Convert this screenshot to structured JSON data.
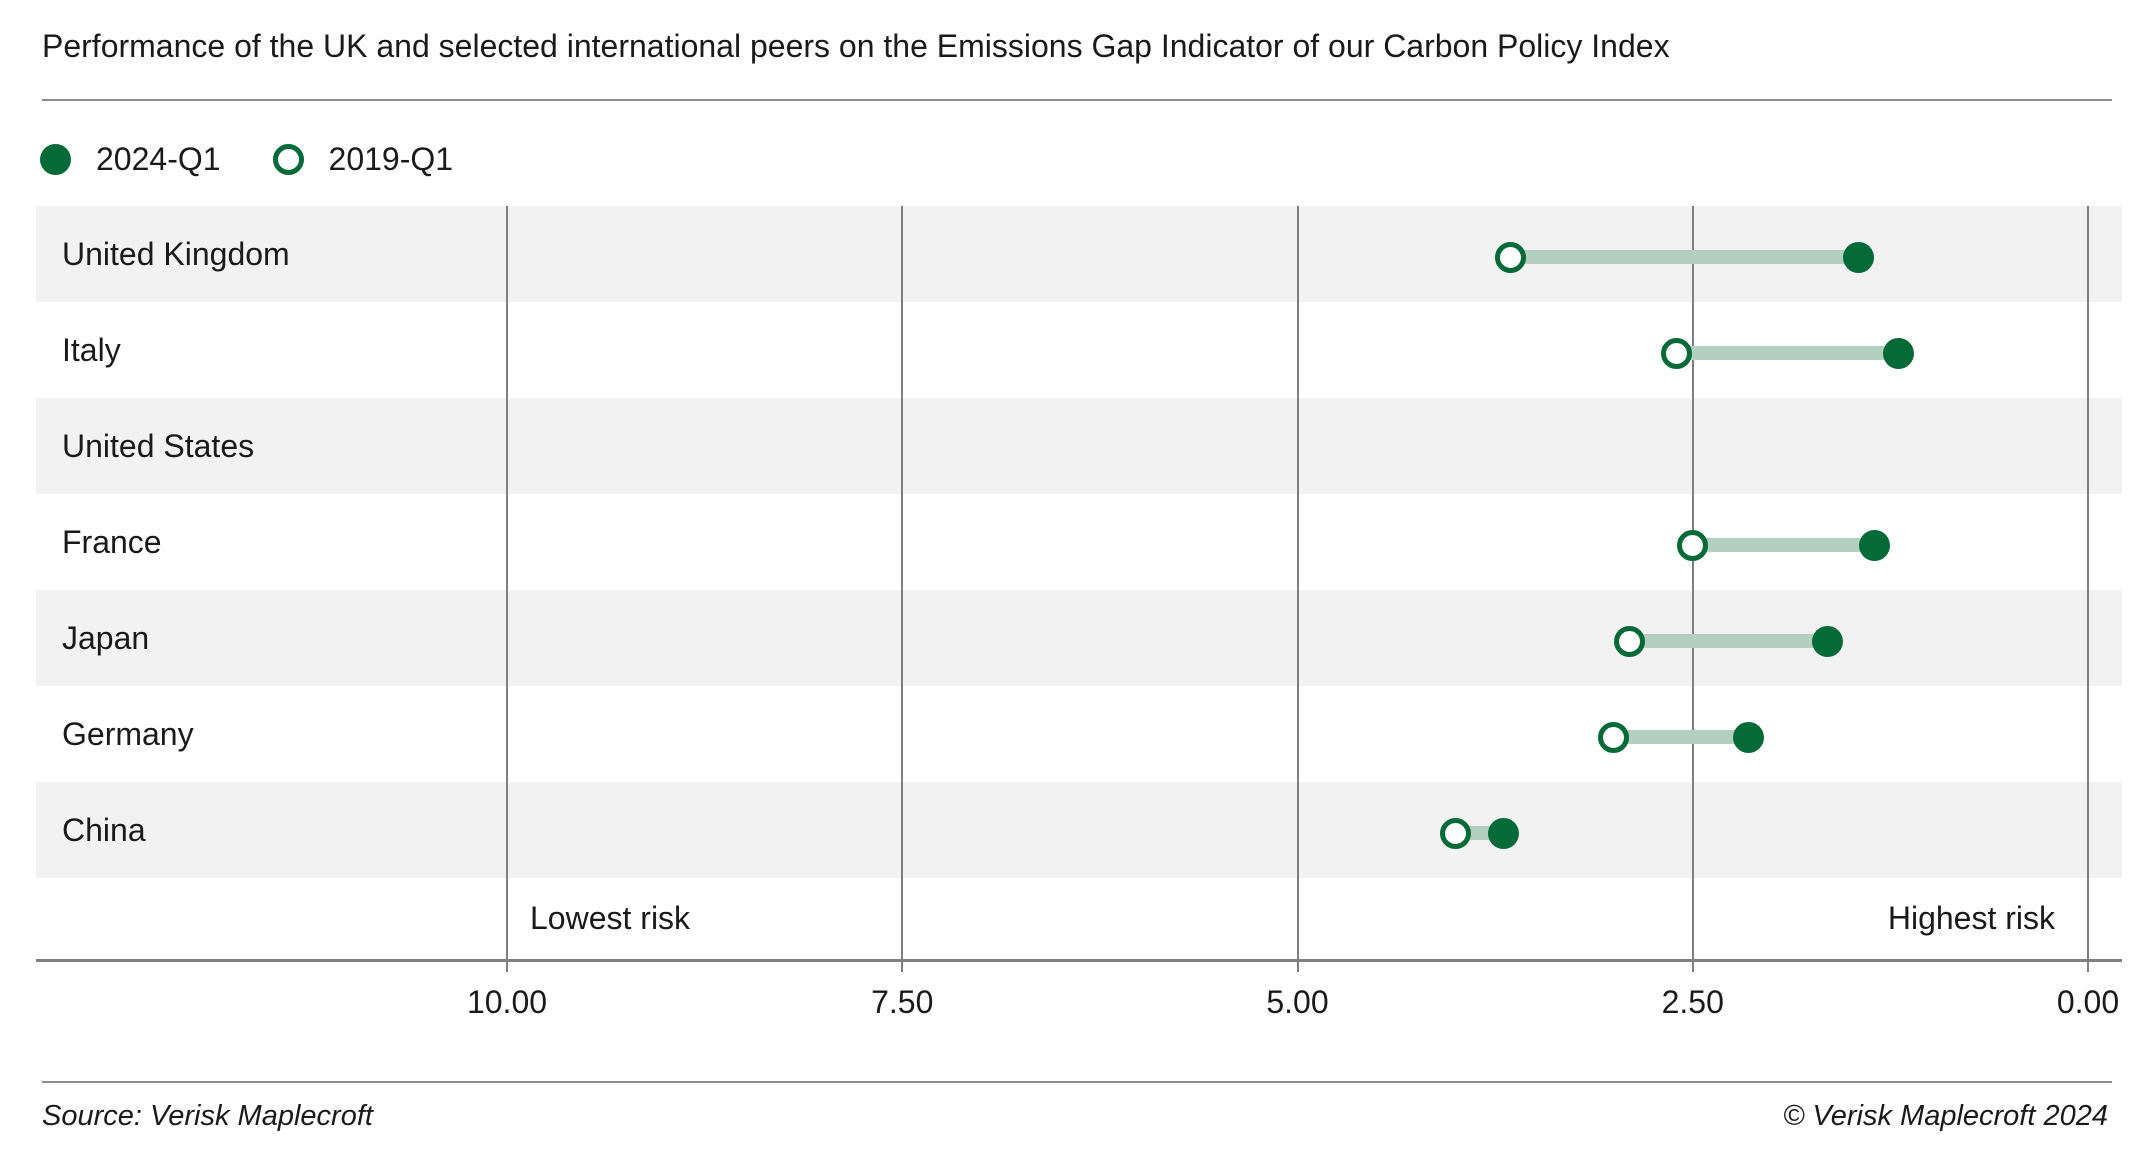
{
  "chart_data": {
    "type": "dumbbell",
    "title": "Performance of the UK and selected international peers on the Emissions Gap Indicator of our Carbon Policy Index",
    "categories": [
      "United Kingdom",
      "Italy",
      "United States",
      "France",
      "Japan",
      "Germany",
      "China"
    ],
    "series": [
      {
        "name": "2024-Q1",
        "marker": "filled",
        "values": [
          1.45,
          1.2,
          null,
          1.35,
          1.65,
          2.15,
          3.7
        ]
      },
      {
        "name": "2019-Q1",
        "marker": "open",
        "values": [
          3.65,
          2.6,
          null,
          2.5,
          2.9,
          3.0,
          4.0
        ]
      }
    ],
    "x_axis": {
      "range": [
        0,
        10
      ],
      "reversed": true,
      "ticks": [
        {
          "value": 10,
          "label": "10.00"
        },
        {
          "value": 7.5,
          "label": "7.50"
        },
        {
          "value": 5,
          "label": "5.00"
        },
        {
          "value": 2.5,
          "label": "2.50"
        },
        {
          "value": 0,
          "label": "0.00"
        }
      ],
      "label_left": "Lowest risk",
      "label_right": "Highest risk"
    },
    "legend_position": "top-left",
    "grid": "vertical",
    "row_striping": "alternate-gray"
  },
  "footer": {
    "source": "Source: Verisk Maplecroft",
    "copyright": "© Verisk Maplecroft 2024"
  },
  "colors": {
    "green": "#046a38",
    "connector": "#b3cfc0",
    "band_gray": "#f2f2f2",
    "band_white": "#ffffff",
    "gridline": "#7f7f7f",
    "axis": "#7f7f7f",
    "text": "#1a1a1a",
    "divider": "#8c8c8c"
  }
}
